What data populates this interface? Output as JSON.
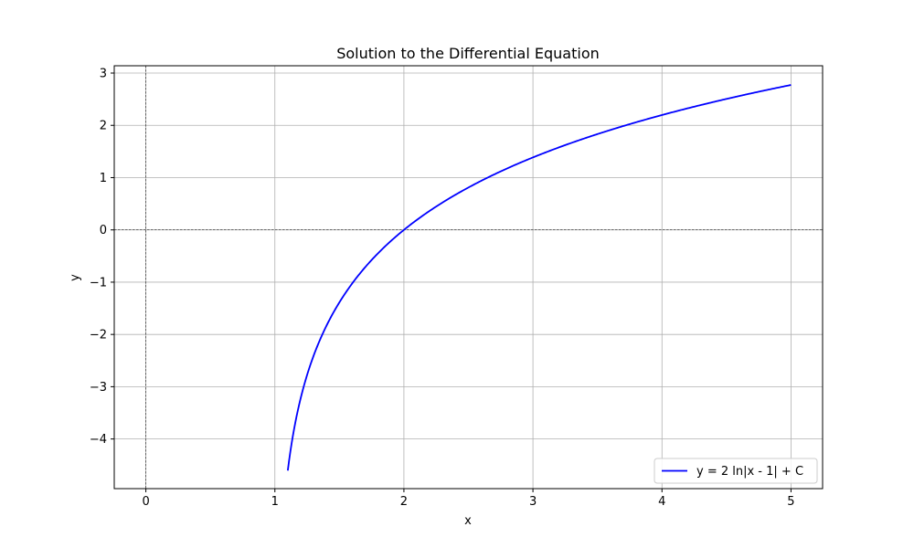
{
  "chart_data": {
    "type": "line",
    "title": "Solution to the Differential Equation",
    "xlabel": "x",
    "ylabel": "y",
    "xlim": [
      -0.245,
      5.245
    ],
    "ylim": [
      -4.95,
      3.14
    ],
    "xticks": [
      0,
      1,
      2,
      3,
      4,
      5
    ],
    "yticks": [
      -4,
      -3,
      -2,
      -1,
      0,
      1,
      2,
      3
    ],
    "xtick_labels": [
      "0",
      "1",
      "2",
      "3",
      "4",
      "5"
    ],
    "ytick_labels": [
      "−4",
      "−3",
      "−2",
      "−1",
      "0",
      "1",
      "2",
      "3"
    ],
    "grid": true,
    "reference_lines": {
      "x": 0,
      "y": 0,
      "style": "dashed",
      "color": "#000000"
    },
    "legend_position": "lower-right",
    "series": [
      {
        "name": "y = 2 ln|x - 1| + C",
        "color": "#0000ff",
        "function": "2*ln(x-1)",
        "x_range": [
          1.1,
          5.0
        ],
        "points": [
          [
            1.1,
            -4.61
          ],
          [
            1.2,
            -3.22
          ],
          [
            1.3,
            -2.41
          ],
          [
            1.4,
            -1.83
          ],
          [
            1.5,
            -1.39
          ],
          [
            1.6,
            -1.02
          ],
          [
            1.8,
            -0.45
          ],
          [
            2.0,
            0.0
          ],
          [
            2.25,
            0.45
          ],
          [
            2.5,
            0.81
          ],
          [
            2.75,
            1.12
          ],
          [
            3.0,
            1.39
          ],
          [
            3.5,
            1.83
          ],
          [
            4.0,
            2.2
          ],
          [
            4.5,
            2.51
          ],
          [
            5.0,
            2.77
          ]
        ]
      }
    ]
  }
}
